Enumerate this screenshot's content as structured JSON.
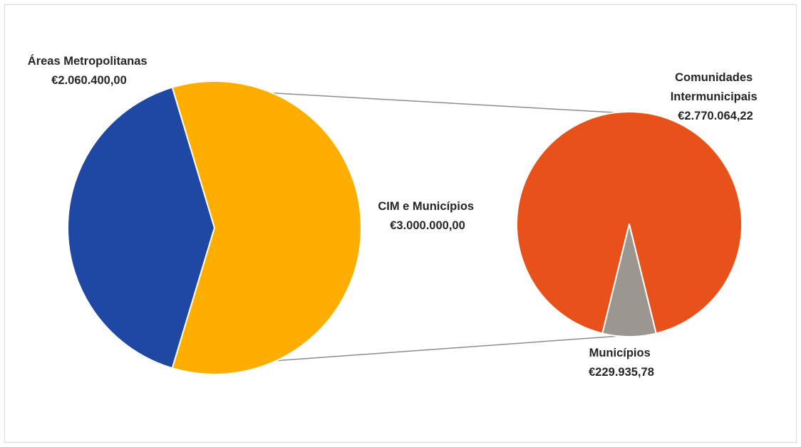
{
  "chart_data": {
    "type": "pie",
    "subtype": "pie-of-pie",
    "colors": {
      "areas_metropolitanas": "#1F48A4",
      "cim_e_municipios": "#FFAE00",
      "comunidades_intermunicipais": "#E9511B",
      "municipios": "#9C9690",
      "connector": "#8C8C8C"
    },
    "main_pie": {
      "slices": [
        {
          "name": "Áreas Metropolitanas",
          "value": 2060400.0,
          "value_label": "€2.060.400,00"
        },
        {
          "name": "CIM e Municípios",
          "value": 3000000.0,
          "value_label": "€3.000.000,00"
        }
      ]
    },
    "secondary_pie": {
      "parent_slice": "CIM e Municípios",
      "slices": [
        {
          "name": "Comunidades Intermunicipais",
          "name_lines": [
            "Comunidades",
            "Intermunicipais"
          ],
          "value": 2770064.22,
          "value_label": "€2.770.064,22"
        },
        {
          "name": "Municípios",
          "value": 229935.78,
          "value_label": "€229.935,78"
        }
      ]
    }
  }
}
